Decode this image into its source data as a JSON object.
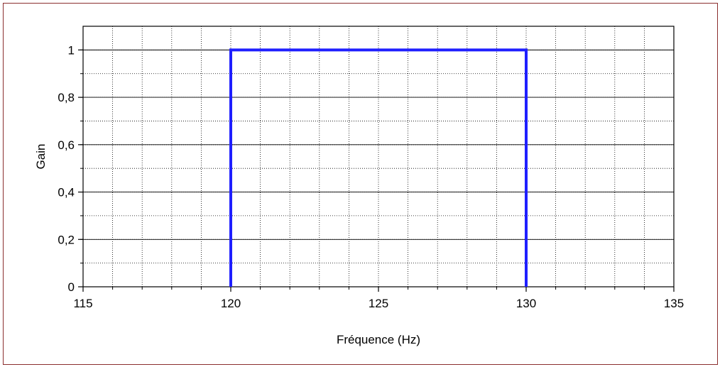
{
  "chart_data": {
    "type": "line",
    "title": "",
    "xlabel": "Fréquence (Hz)",
    "ylabel": "Gain",
    "xlim": [
      115,
      135
    ],
    "ylim": [
      0,
      1.1
    ],
    "x_ticks": [
      115,
      120,
      125,
      130,
      135
    ],
    "x_tick_labels": [
      "115",
      "120",
      "125",
      "130",
      "135"
    ],
    "y_ticks": [
      0,
      0.2,
      0.4,
      0.6,
      0.8,
      1
    ],
    "y_tick_labels": [
      "0",
      "0,2",
      "0,4",
      "0,6",
      "0,8",
      "1"
    ],
    "x_minor_step": 1,
    "y_minor_step": 0.1,
    "grid": true,
    "legend": "none",
    "series": [
      {
        "color": "#1f1fff",
        "x": [
          120,
          120,
          130,
          130
        ],
        "y": [
          0,
          1,
          1,
          0
        ]
      }
    ]
  },
  "colors": {
    "frame": "#8b2e2e",
    "axes": "#000000",
    "grid": "#000000"
  }
}
